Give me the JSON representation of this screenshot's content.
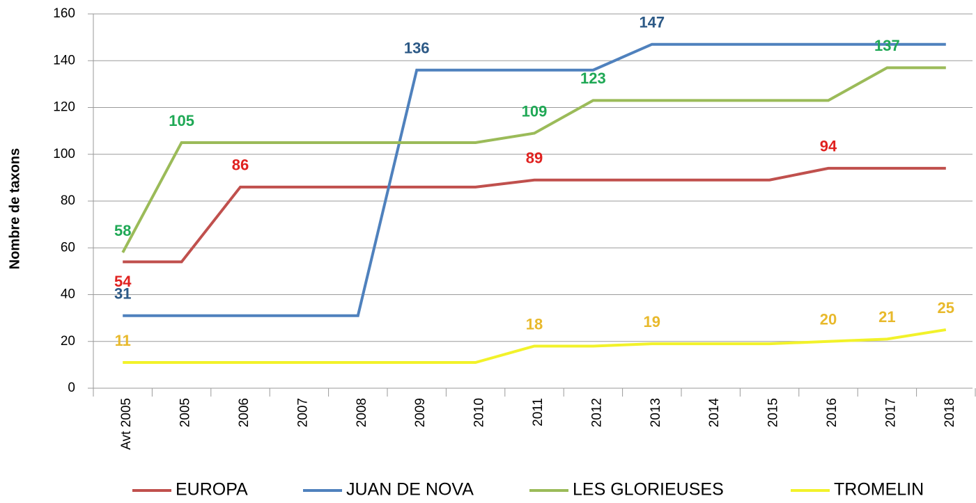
{
  "chart_data": {
    "type": "line",
    "y_label": "Nombre de taxons",
    "categories": [
      "Avt 2005",
      "2005",
      "2006",
      "2007",
      "2008",
      "2009",
      "2010",
      "2011",
      "2012",
      "2013",
      "2014",
      "2015",
      "2016",
      "2017",
      "2018"
    ],
    "series": [
      {
        "name": "EUROPA",
        "color": "#c0504d",
        "label_color": "#e0211f",
        "values": [
          54,
          54,
          86,
          86,
          86,
          86,
          86,
          89,
          89,
          89,
          89,
          89,
          94,
          94,
          94
        ],
        "labels_at": [
          0,
          2,
          7,
          12
        ]
      },
      {
        "name": "JUAN DE NOVA",
        "color": "#4f81bd",
        "label_color": "#2c5986",
        "values": [
          31,
          31,
          31,
          31,
          31,
          136,
          136,
          136,
          136,
          147,
          147,
          147,
          147,
          147,
          147
        ],
        "labels_at": [
          0,
          5,
          9
        ]
      },
      {
        "name": "LES GLORIEUSES",
        "color": "#9bbb59",
        "label_color": "#1fa855",
        "values": [
          58,
          105,
          105,
          105,
          105,
          105,
          105,
          109,
          123,
          123,
          123,
          123,
          123,
          137,
          137
        ],
        "labels_at": [
          0,
          1,
          7,
          8,
          13
        ]
      },
      {
        "name": "TROMELIN",
        "color": "#f2f22a",
        "label_color": "#e8b92c",
        "values": [
          11,
          11,
          11,
          11,
          11,
          11,
          11,
          18,
          18,
          19,
          19,
          19,
          20,
          21,
          25
        ],
        "labels_at": [
          0,
          7,
          9,
          12,
          13,
          14
        ]
      }
    ],
    "ylim": [
      0,
      160
    ],
    "yticks": [
      0,
      20,
      40,
      60,
      80,
      100,
      120,
      140,
      160
    ],
    "grid": true,
    "legend": "bottom"
  }
}
